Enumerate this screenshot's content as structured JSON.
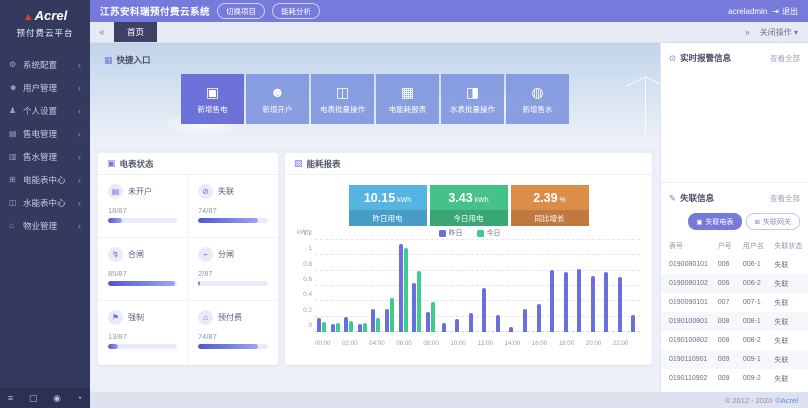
{
  "logo": {
    "brand": "Acrel",
    "subtitle": "预付费云平台"
  },
  "header": {
    "title": "江苏安科瑞预付费云系统",
    "buttons": [
      "切换项目",
      "能耗分析"
    ],
    "username": "acreladmin",
    "logout_label": "退出"
  },
  "sidebar": {
    "items": [
      {
        "id": "system-config",
        "icon": "gear",
        "label": "系统配置"
      },
      {
        "id": "user-management",
        "icon": "users",
        "label": "用户管理"
      },
      {
        "id": "personal-settings",
        "icon": "person",
        "label": "个人设置"
      },
      {
        "id": "electric-sale",
        "icon": "electric-sale",
        "label": "售电管理"
      },
      {
        "id": "water-sale",
        "icon": "water-sale",
        "label": "售水管理"
      },
      {
        "id": "electric-meter-center",
        "icon": "electric-meter",
        "label": "电能表中心"
      },
      {
        "id": "water-meter-center",
        "icon": "water-meter",
        "label": "水能表中心"
      },
      {
        "id": "property-management",
        "icon": "property",
        "label": "物业管理"
      }
    ],
    "bottom_icons": [
      "menu",
      "monitor",
      "lock",
      "globe"
    ]
  },
  "tabbar": {
    "active_tab": "首页",
    "more_label": "关闭操作"
  },
  "quick_entry": {
    "title": "快捷入口",
    "buttons": [
      {
        "id": "add-electric-sale",
        "icon": "meter-add",
        "label": "新增售电",
        "primary": true
      },
      {
        "id": "add-account",
        "icon": "user-add",
        "label": "新增开户",
        "primary": false
      },
      {
        "id": "electric-meter-batch",
        "icon": "electric-batch",
        "label": "电表批量操作",
        "primary": false
      },
      {
        "id": "energy-report",
        "icon": "energy-report",
        "label": "电能耗报表",
        "primary": false
      },
      {
        "id": "water-meter-batch",
        "icon": "water-batch",
        "label": "水表批量操作",
        "primary": false
      },
      {
        "id": "add-water-sale",
        "icon": "water-add",
        "label": "新增售水",
        "primary": false
      }
    ]
  },
  "meter_status": {
    "title": "电表状态",
    "total": 87,
    "tiles": [
      {
        "id": "not-opened",
        "icon": "card",
        "label": "未开户",
        "value": "18/87"
      },
      {
        "id": "offline",
        "icon": "no-signal",
        "label": "失联",
        "value": "74/87"
      },
      {
        "id": "switch-on",
        "icon": "flag-on",
        "label": "合闸",
        "value": "85/87"
      },
      {
        "id": "switch-off",
        "icon": "flag-off",
        "label": "分闸",
        "value": "2/87"
      },
      {
        "id": "forced",
        "icon": "force",
        "label": "强制",
        "value": "13/87"
      },
      {
        "id": "prepaid",
        "icon": "home-pay",
        "label": "预付费",
        "value": "74/87"
      }
    ]
  },
  "energy": {
    "title": "能耗报表",
    "stats": [
      {
        "id": "yesterday-usage",
        "value": "10.15",
        "unit": "kWh",
        "label": "昨日用电",
        "color": "#56b4e0",
        "band": "#479dc6"
      },
      {
        "id": "today-usage",
        "value": "3.43",
        "unit": "kWh",
        "label": "今日用电",
        "color": "#46c189",
        "band": "#3aa674"
      },
      {
        "id": "yoy-growth",
        "value": "2.39",
        "unit": "%",
        "label": "同比增长",
        "color": "#dc8e49",
        "band": "#c1793f"
      }
    ]
  },
  "chart_data": {
    "type": "bar",
    "title": "能耗报表",
    "xlabel": "",
    "ylabel": "kWh",
    "ylim": [
      0,
      1.2
    ],
    "yticks": [
      "0",
      "0.2",
      "0.4",
      "0.6",
      "0.8",
      "1",
      "1.2"
    ],
    "grid": true,
    "legend_position": "top",
    "xtick_every": 2,
    "x": [
      "00:00",
      "01:00",
      "02:00",
      "03:00",
      "04:00",
      "05:00",
      "06:00",
      "07:00",
      "08:00",
      "09:00",
      "10:00",
      "11:00",
      "12:00",
      "13:00",
      "14:00",
      "15:00",
      "16:00",
      "17:00",
      "18:00",
      "19:00",
      "20:00",
      "21:00",
      "22:00",
      "23:00"
    ],
    "series": [
      {
        "name": "昨日",
        "color": "#6a6fdf",
        "values": [
          0.18,
          0.11,
          0.19,
          0.11,
          0.3,
          0.3,
          1.15,
          0.64,
          0.26,
          0.12,
          0.17,
          0.25,
          0.58,
          0.22,
          0.07,
          0.3,
          0.36,
          0.81,
          0.78,
          0.82,
          0.73,
          0.78,
          0.72,
          0.22
        ]
      },
      {
        "name": "今日",
        "color": "#3fcb8d",
        "values": [
          0.13,
          0.12,
          0.14,
          0.12,
          0.18,
          0.45,
          1.1,
          0.8,
          0.39,
          null,
          null,
          null,
          null,
          null,
          null,
          null,
          null,
          null,
          null,
          null,
          null,
          null,
          null,
          null
        ]
      }
    ]
  },
  "alarm_panel": {
    "title": "实时报警信息",
    "view_all": "查看全部"
  },
  "offline_panel": {
    "title": "失联信息",
    "view_all": "查看全部",
    "tabs": [
      {
        "id": "offline-electric-meters",
        "icon": "meter",
        "label": "失联电表",
        "active": true
      },
      {
        "id": "offline-gateways",
        "icon": "gateway",
        "label": "失联网关",
        "active": false
      }
    ],
    "table": {
      "headers": [
        "表号",
        "户号",
        "用户名",
        "失联状态"
      ],
      "rows": [
        [
          "0190080101",
          "006",
          "006-1",
          "失联"
        ],
        [
          "0190080102",
          "006",
          "006-2",
          "失联"
        ],
        [
          "0190090101",
          "007",
          "007-1",
          "失联"
        ],
        [
          "0190100801",
          "008",
          "008-1",
          "失联"
        ],
        [
          "0190100802",
          "008",
          "008-2",
          "失联"
        ],
        [
          "0190110901",
          "009",
          "009-1",
          "失联"
        ],
        [
          "0190110902",
          "009",
          "009-2",
          "失联"
        ]
      ]
    }
  },
  "footer": {
    "copyright": "© 2012 - 2020",
    "brand_link": "©Acrel"
  }
}
